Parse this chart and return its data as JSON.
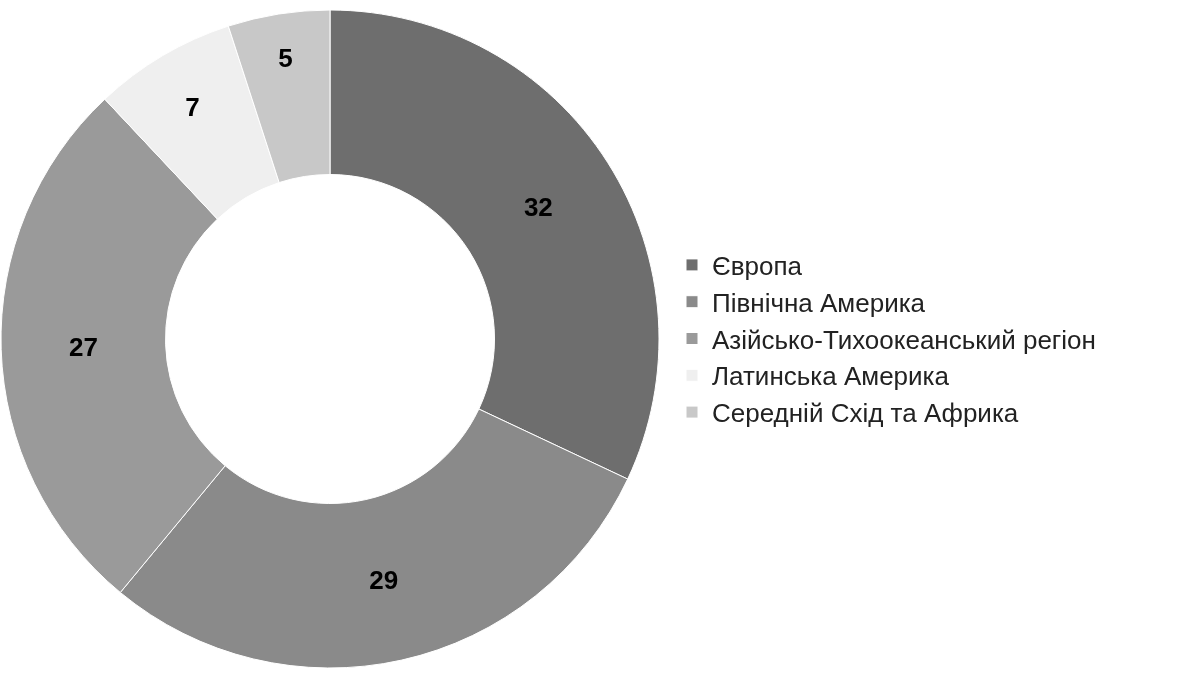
{
  "chart_data": {
    "type": "donut",
    "categories": [
      "Європа",
      "Північна Америка",
      "Азійсько-Тихоокеанський регіон",
      "Латинська Америка",
      "Середній Схід та Африка"
    ],
    "values": [
      32,
      29,
      27,
      7,
      5
    ],
    "colors": [
      "#6e6e6e",
      "#8a8a8a",
      "#9a9a9a",
      "#efefef",
      "#c8c8c8"
    ],
    "data_labels": true,
    "legend": "right"
  }
}
